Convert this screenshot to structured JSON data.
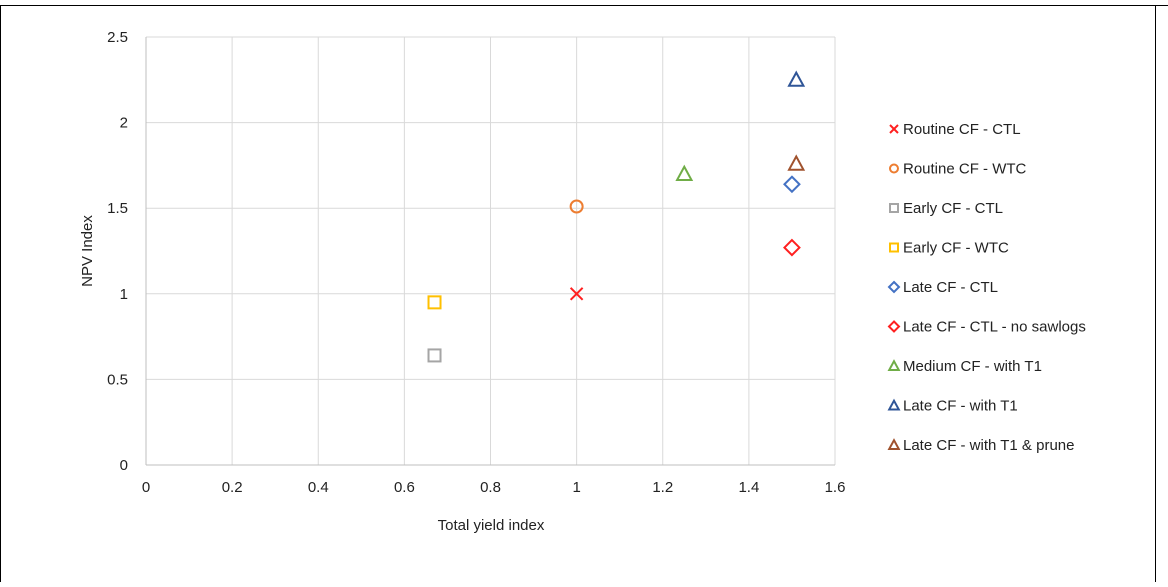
{
  "chart_data": {
    "type": "scatter",
    "title": "",
    "xlabel": "Total yield index",
    "ylabel": "NPV Index",
    "xlim": [
      0,
      1.6
    ],
    "ylim": [
      0,
      2.5
    ],
    "x_ticks": [
      "0",
      "0.2",
      "0.4",
      "0.6",
      "0.8",
      "1",
      "1.2",
      "1.4",
      "1.6"
    ],
    "y_ticks": [
      "0",
      "0.5",
      "1",
      "1.5",
      "2",
      "2.5"
    ],
    "grid": true,
    "legend_position": "right",
    "series": [
      {
        "name": "Routine CF - CTL",
        "marker": "x",
        "color": "#ff2020",
        "points": [
          {
            "x": 1.0,
            "y": 1.0
          }
        ]
      },
      {
        "name": "Routine CF - WTC",
        "marker": "circle",
        "color": "#ed7d31",
        "points": [
          {
            "x": 1.0,
            "y": 1.51
          }
        ]
      },
      {
        "name": "Early CF - CTL",
        "marker": "square",
        "color": "#a5a5a5",
        "points": [
          {
            "x": 0.67,
            "y": 0.64
          }
        ]
      },
      {
        "name": "Early CF - WTC",
        "marker": "square",
        "color": "#ffc000",
        "points": [
          {
            "x": 0.67,
            "y": 0.95
          }
        ]
      },
      {
        "name": "Late CF - CTL",
        "marker": "diamond",
        "color": "#4472c4",
        "points": [
          {
            "x": 1.5,
            "y": 1.64
          }
        ]
      },
      {
        "name": "Late CF - CTL - no sawlogs",
        "marker": "diamond",
        "color": "#ff2020",
        "points": [
          {
            "x": 1.5,
            "y": 1.27
          }
        ]
      },
      {
        "name": "Medium CF - with T1",
        "marker": "triangle",
        "color": "#70ad47",
        "points": [
          {
            "x": 1.25,
            "y": 1.7
          }
        ]
      },
      {
        "name": "Late CF - with T1",
        "marker": "triangle",
        "color": "#2f5597",
        "points": [
          {
            "x": 1.51,
            "y": 2.25
          }
        ]
      },
      {
        "name": "Late CF - with T1 & prune",
        "marker": "triangle",
        "color": "#a0522d",
        "points": [
          {
            "x": 1.51,
            "y": 1.76
          }
        ]
      }
    ]
  }
}
